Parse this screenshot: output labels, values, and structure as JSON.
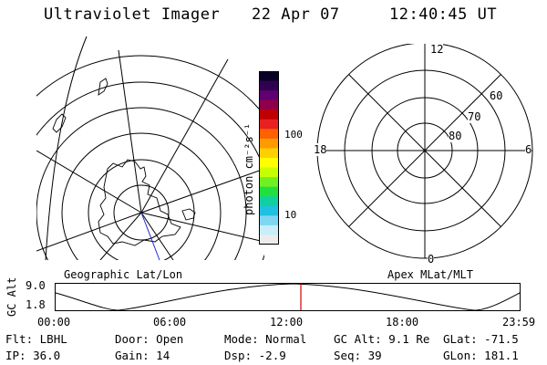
{
  "header": {
    "instrument": "Ultraviolet Imager",
    "date": "22 Apr 07",
    "time": "12:40:45 UT"
  },
  "colorbar": {
    "unit_label": "photon cm⁻²s⁻¹",
    "tick_100": "100",
    "tick_10": "10",
    "colors": [
      "#0a0026",
      "#300050",
      "#600070",
      "#90004a",
      "#c00000",
      "#e82020",
      "#ff6000",
      "#ff9a00",
      "#ffd000",
      "#ffff00",
      "#c8ff00",
      "#70f020",
      "#20e040",
      "#10d0a0",
      "#20c0e0",
      "#7fd6f0",
      "#c8eef8",
      "#ececec"
    ]
  },
  "polar_plot": {
    "label_12": "12",
    "label_18": "18",
    "label_6": "6",
    "label_0": "0",
    "lat_60": "60",
    "lat_70": "70",
    "lat_80": "80"
  },
  "labels": {
    "geo": "Geographic Lat/Lon",
    "apex": "Apex MLat/MLT"
  },
  "timeline": {
    "axis_title": "GC Alt",
    "y_max": "9.0",
    "y_min": "1.8",
    "ticks": [
      "00:00",
      "06:00",
      "12:00",
      "18:00",
      "23:59"
    ],
    "marker_color": "#d40000"
  },
  "status": {
    "row1": [
      {
        "key": "Flt:",
        "value": "LBHL"
      },
      {
        "key": "Door:",
        "value": "Open"
      },
      {
        "key": "Mode:",
        "value": "Normal"
      },
      {
        "key": "GC Alt:",
        "value": "9.1 Re"
      },
      {
        "key": "GLat:",
        "value": "-71.5"
      }
    ],
    "row2": [
      {
        "key": "IP:",
        "value": "36.0"
      },
      {
        "key": "Gain:",
        "value": "14"
      },
      {
        "key": "Dsp:",
        "value": "-2.9"
      },
      {
        "key": "Seq:",
        "value": "39"
      },
      {
        "key": "GLon:",
        "value": "181.1"
      }
    ]
  }
}
